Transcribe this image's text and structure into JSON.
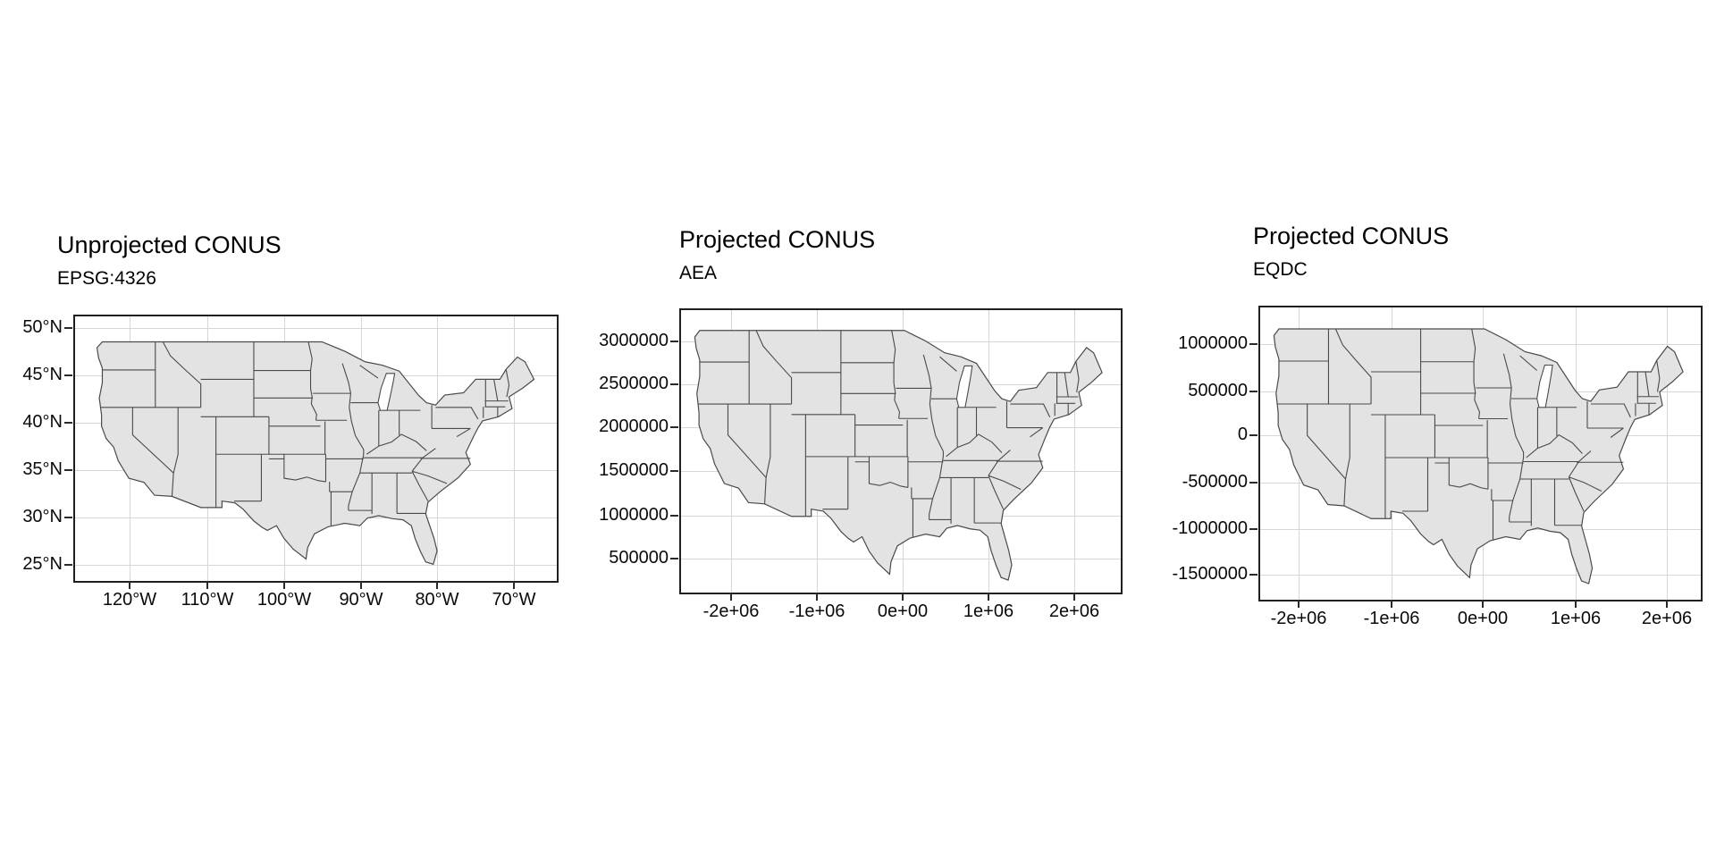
{
  "figure": {
    "background": "#ffffff",
    "map_fill": "#e3e3e3",
    "map_stroke": "#4a4a4a",
    "grid_color": "#d6d6d6",
    "panel_border_color": "#1f1f1f",
    "text_color": "#000000"
  },
  "panels": [
    {
      "id": "epsg4326",
      "title": "Unprojected CONUS",
      "subtitle": "EPSG:4326",
      "y_ticks": [
        "50°N",
        "45°N",
        "40°N",
        "35°N",
        "30°N",
        "25°N"
      ],
      "x_ticks": [
        "120°W",
        "110°W",
        "100°W",
        "90°W",
        "80°W",
        "70°W"
      ]
    },
    {
      "id": "aea",
      "title": "Projected CONUS",
      "subtitle": "AEA",
      "y_ticks": [
        "3000000",
        "2500000",
        "2000000",
        "1500000",
        "1000000",
        "500000"
      ],
      "x_ticks": [
        "-2e+06",
        "-1e+06",
        "0e+00",
        "1e+06",
        "2e+06"
      ]
    },
    {
      "id": "eqdc",
      "title": "Projected CONUS",
      "subtitle": "EQDC",
      "y_ticks": [
        "1000000",
        "500000",
        "0",
        "-500000",
        "-1000000",
        "-1500000"
      ],
      "x_ticks": [
        "-2e+06",
        "-1e+06",
        "0e+00",
        "1e+06",
        "2e+06"
      ]
    }
  ]
}
